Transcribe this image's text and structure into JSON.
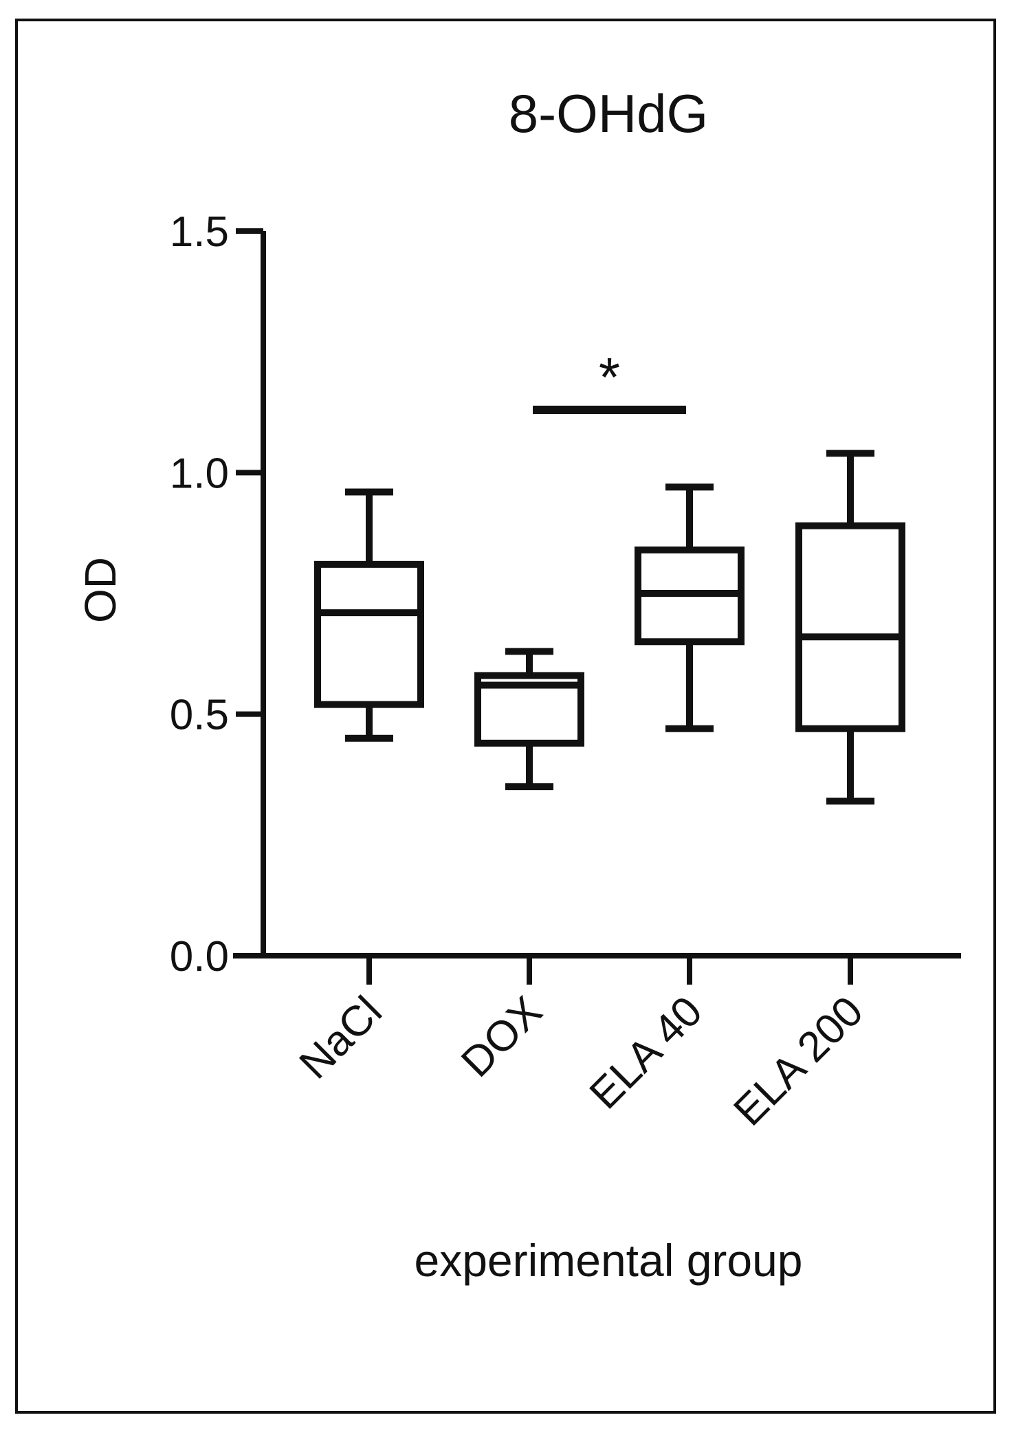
{
  "chart_data": {
    "type": "box",
    "title": "8-OHdG",
    "xlabel": "experimental group",
    "ylabel": "OD",
    "ylim": [
      0,
      1.5
    ],
    "yticks": [
      "0.0",
      "0.5",
      "1.0",
      "1.5"
    ],
    "categories": [
      "NaCl",
      "DOX",
      "ELA 40",
      "ELA 200"
    ],
    "boxes": [
      {
        "min": 0.45,
        "q1": 0.52,
        "median": 0.71,
        "q3": 0.81,
        "max": 0.96
      },
      {
        "min": 0.35,
        "q1": 0.44,
        "median": 0.56,
        "q3": 0.58,
        "max": 0.63
      },
      {
        "min": 0.47,
        "q1": 0.65,
        "median": 0.75,
        "q3": 0.84,
        "max": 0.97
      },
      {
        "min": 0.32,
        "q1": 0.47,
        "median": 0.66,
        "q3": 0.89,
        "max": 1.04
      }
    ],
    "significance": [
      {
        "from": "DOX",
        "to": "ELA 40",
        "y": 1.13,
        "label": "*"
      }
    ],
    "colors": {
      "stroke": "#111111",
      "background": "#ffffff"
    }
  }
}
